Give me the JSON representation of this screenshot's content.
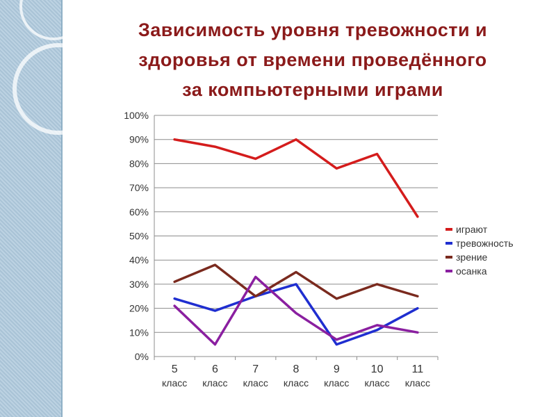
{
  "slide": {
    "title_lines": [
      "Зависимость уровня тревожности и",
      "здоровья от   времени  проведённого",
      "за компьютерными  играми"
    ]
  },
  "chart_data": {
    "type": "line",
    "categories": [
      [
        "5",
        "класс"
      ],
      [
        "6",
        "класс"
      ],
      [
        "7",
        "класс"
      ],
      [
        "8",
        "класс"
      ],
      [
        "9",
        "класс"
      ],
      [
        "10",
        "класс"
      ],
      [
        "11",
        "класс"
      ]
    ],
    "ylim": [
      0,
      100
    ],
    "yticks": [
      "0%",
      "10%",
      "20%",
      "30%",
      "40%",
      "50%",
      "60%",
      "70%",
      "80%",
      "90%",
      "100%"
    ],
    "grid": true,
    "legend_position": "right",
    "series": [
      {
        "name": "играют",
        "color": "#d41c1c",
        "values": [
          90,
          87,
          82,
          90,
          78,
          84,
          58
        ]
      },
      {
        "name": "тревожность",
        "color": "#1f2ed0",
        "values": [
          24,
          19,
          25,
          30,
          5,
          11,
          20
        ]
      },
      {
        "name": "зрение",
        "color": "#7a2a1e",
        "values": [
          31,
          38,
          25,
          35,
          24,
          30,
          25
        ]
      },
      {
        "name": "осанка",
        "color": "#8a1fa0",
        "values": [
          21,
          5,
          33,
          18,
          7,
          13,
          10
        ]
      }
    ]
  }
}
